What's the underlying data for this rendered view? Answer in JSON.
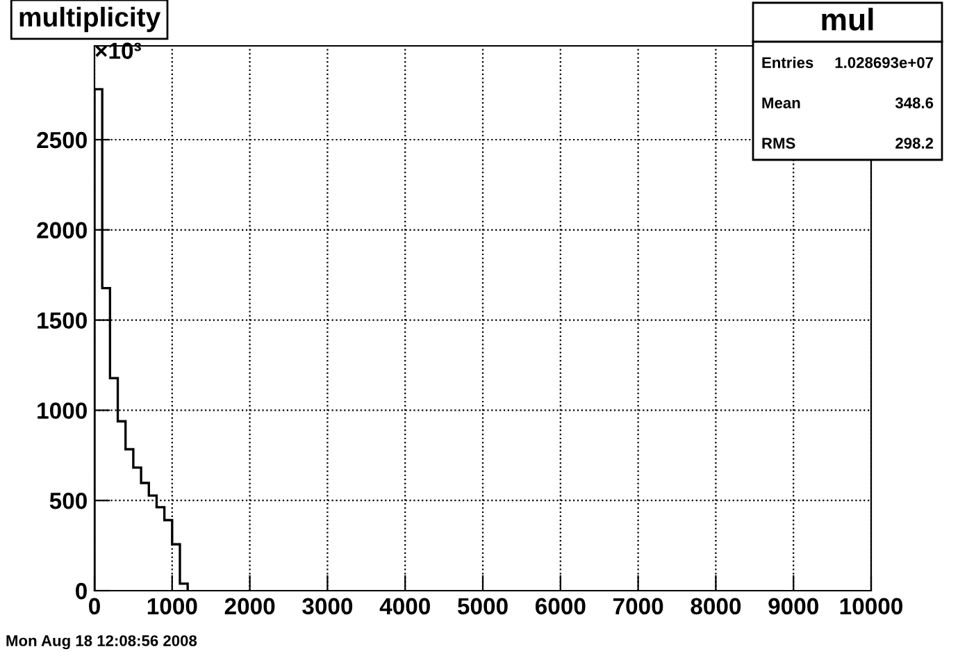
{
  "chart_data": {
    "type": "histogram",
    "title": "multiplicity",
    "bins": [
      0,
      100,
      200,
      300,
      400,
      500,
      600,
      700,
      800,
      900,
      1000,
      1100,
      1200
    ],
    "values": [
      2780,
      1677,
      1178,
      939,
      784,
      682,
      597,
      527,
      463,
      391,
      257,
      39
    ],
    "color": "#000000",
    "xlim": [
      0,
      10000
    ],
    "xticks": [
      0,
      1000,
      2000,
      3000,
      4000,
      5000,
      6000,
      7000,
      8000,
      9000,
      10000
    ],
    "ylim": [
      0,
      3020
    ],
    "yticks": [
      0,
      500,
      1000,
      1500,
      2000,
      2500
    ],
    "grid": true,
    "annotations": [
      "×10³",
      "Mon Aug 18 12:08:56 2008",
      "mul",
      "Entries",
      "1.028693e+07",
      "Mean",
      "348.6",
      "RMS",
      "298.2"
    ]
  }
}
